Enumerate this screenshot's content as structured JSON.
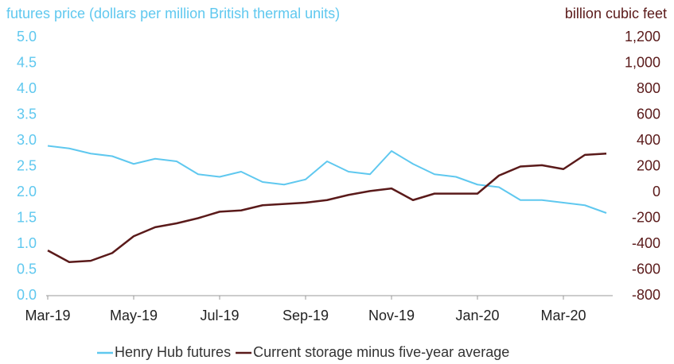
{
  "chart_data": {
    "type": "line",
    "y_axis_label": "futures price (dollars per million British thermal units)",
    "y2_axis_label": "billion cubic feet",
    "categories": [
      "Mar-19",
      null,
      null,
      null,
      "May-19",
      null,
      null,
      null,
      "Jul-19",
      null,
      null,
      null,
      "Sep-19",
      null,
      null,
      null,
      "Nov-19",
      null,
      null,
      null,
      "Jan-20",
      null,
      null,
      null,
      "Mar-20",
      null,
      null
    ],
    "series": [
      {
        "name": "Henry Hub futures",
        "color": "#5fc8ef",
        "axis": "y",
        "values": [
          2.9,
          2.85,
          2.75,
          2.7,
          2.55,
          2.65,
          2.6,
          2.35,
          2.3,
          2.4,
          2.2,
          2.15,
          2.25,
          2.6,
          2.4,
          2.35,
          2.8,
          2.55,
          2.35,
          2.3,
          2.15,
          2.1,
          1.85,
          1.85,
          1.8,
          1.75,
          1.6
        ]
      },
      {
        "name": "Current storage minus five-year average",
        "color": "#5a1a1a",
        "axis": "y2",
        "values": [
          -450,
          -540,
          -530,
          -470,
          -340,
          -270,
          -240,
          -200,
          -150,
          -140,
          -100,
          -90,
          -80,
          -60,
          -20,
          10,
          30,
          -60,
          -10,
          -10,
          -10,
          130,
          200,
          210,
          180,
          290,
          300
        ]
      }
    ],
    "ylim": [
      0,
      5
    ],
    "yticks": [
      {
        "value": 0,
        "label": "0.0"
      },
      {
        "value": 0.5,
        "label": "0.5"
      },
      {
        "value": 1,
        "label": "1.0"
      },
      {
        "value": 1.5,
        "label": "1.5"
      },
      {
        "value": 2,
        "label": "2.0"
      },
      {
        "value": 2.5,
        "label": "2.5"
      },
      {
        "value": 3,
        "label": "3.0"
      },
      {
        "value": 3.5,
        "label": "3.5"
      },
      {
        "value": 4,
        "label": "4.0"
      },
      {
        "value": 4.5,
        "label": "4.5"
      },
      {
        "value": 5,
        "label": "5.0"
      }
    ],
    "y2lim": [
      -800,
      1200
    ],
    "y2ticks": [
      -800,
      -600,
      -400,
      -200,
      0,
      200,
      400,
      600,
      800,
      {
        "value": 1000,
        "label": "1,000"
      },
      {
        "value": 1200,
        "label": "1,200"
      }
    ],
    "grid": false,
    "legend": "bottom"
  }
}
